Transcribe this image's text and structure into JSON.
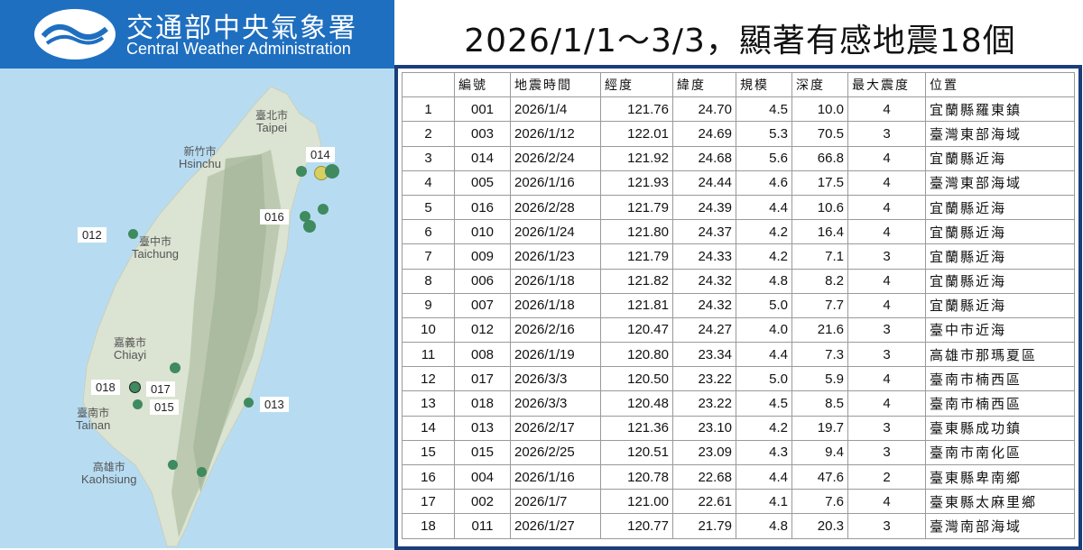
{
  "header": {
    "org_zh": "交通部中央氣象署",
    "org_en": "Central Weather Administration"
  },
  "title": "2026/1/1～3/3，顯著有感地震18個",
  "map": {
    "places": [
      {
        "zh": "臺北市",
        "en": "Taipei"
      },
      {
        "zh": "新竹市",
        "en": "Hsinchu"
      },
      {
        "zh": "臺中市",
        "en": "Taichung"
      },
      {
        "zh": "嘉義市",
        "en": "Chiayi"
      },
      {
        "zh": "臺南市",
        "en": "Tainan"
      },
      {
        "zh": "高雄市",
        "en": "Kaohsiung"
      }
    ],
    "labels": [
      "014",
      "016",
      "012",
      "018",
      "017",
      "015",
      "013"
    ]
  },
  "table": {
    "headers": [
      "",
      "編號",
      "地震時間",
      "經度",
      "緯度",
      "規模",
      "深度",
      "最大震度",
      "位置"
    ],
    "rows": [
      [
        "1",
        "001",
        "2026/1/4",
        "121.76",
        "24.70",
        "4.5",
        "10.0",
        "4",
        "宜蘭縣羅東鎮"
      ],
      [
        "2",
        "003",
        "2026/1/12",
        "122.01",
        "24.69",
        "5.3",
        "70.5",
        "3",
        "臺灣東部海域"
      ],
      [
        "3",
        "014",
        "2026/2/24",
        "121.92",
        "24.68",
        "5.6",
        "66.8",
        "4",
        "宜蘭縣近海"
      ],
      [
        "4",
        "005",
        "2026/1/16",
        "121.93",
        "24.44",
        "4.6",
        "17.5",
        "4",
        "臺灣東部海域"
      ],
      [
        "5",
        "016",
        "2026/2/28",
        "121.79",
        "24.39",
        "4.4",
        "10.6",
        "4",
        "宜蘭縣近海"
      ],
      [
        "6",
        "010",
        "2026/1/24",
        "121.80",
        "24.37",
        "4.2",
        "16.4",
        "4",
        "宜蘭縣近海"
      ],
      [
        "7",
        "009",
        "2026/1/23",
        "121.79",
        "24.33",
        "4.2",
        "7.1",
        "3",
        "宜蘭縣近海"
      ],
      [
        "8",
        "006",
        "2026/1/18",
        "121.82",
        "24.32",
        "4.8",
        "8.2",
        "4",
        "宜蘭縣近海"
      ],
      [
        "9",
        "007",
        "2026/1/18",
        "121.81",
        "24.32",
        "5.0",
        "7.7",
        "4",
        "宜蘭縣近海"
      ],
      [
        "10",
        "012",
        "2026/2/16",
        "120.47",
        "24.27",
        "4.0",
        "21.6",
        "3",
        "臺中市近海"
      ],
      [
        "11",
        "008",
        "2026/1/19",
        "120.80",
        "23.34",
        "4.4",
        "7.3",
        "3",
        "高雄市那瑪夏區"
      ],
      [
        "12",
        "017",
        "2026/3/3",
        "120.50",
        "23.22",
        "5.0",
        "5.9",
        "4",
        "臺南市楠西區"
      ],
      [
        "13",
        "018",
        "2026/3/3",
        "120.48",
        "23.22",
        "4.5",
        "8.5",
        "4",
        "臺南市楠西區"
      ],
      [
        "14",
        "013",
        "2026/2/17",
        "121.36",
        "23.10",
        "4.2",
        "19.7",
        "3",
        "臺東縣成功鎮"
      ],
      [
        "15",
        "015",
        "2026/2/25",
        "120.51",
        "23.09",
        "4.3",
        "9.4",
        "3",
        "臺南市南化區"
      ],
      [
        "16",
        "004",
        "2026/1/16",
        "120.78",
        "22.68",
        "4.4",
        "47.6",
        "2",
        "臺東縣卑南鄉"
      ],
      [
        "17",
        "002",
        "2026/1/7",
        "121.00",
        "22.61",
        "4.1",
        "7.6",
        "4",
        "臺東縣太麻里鄉"
      ],
      [
        "18",
        "011",
        "2026/1/27",
        "120.77",
        "21.79",
        "4.8",
        "20.3",
        "3",
        "臺灣南部海域"
      ]
    ]
  }
}
